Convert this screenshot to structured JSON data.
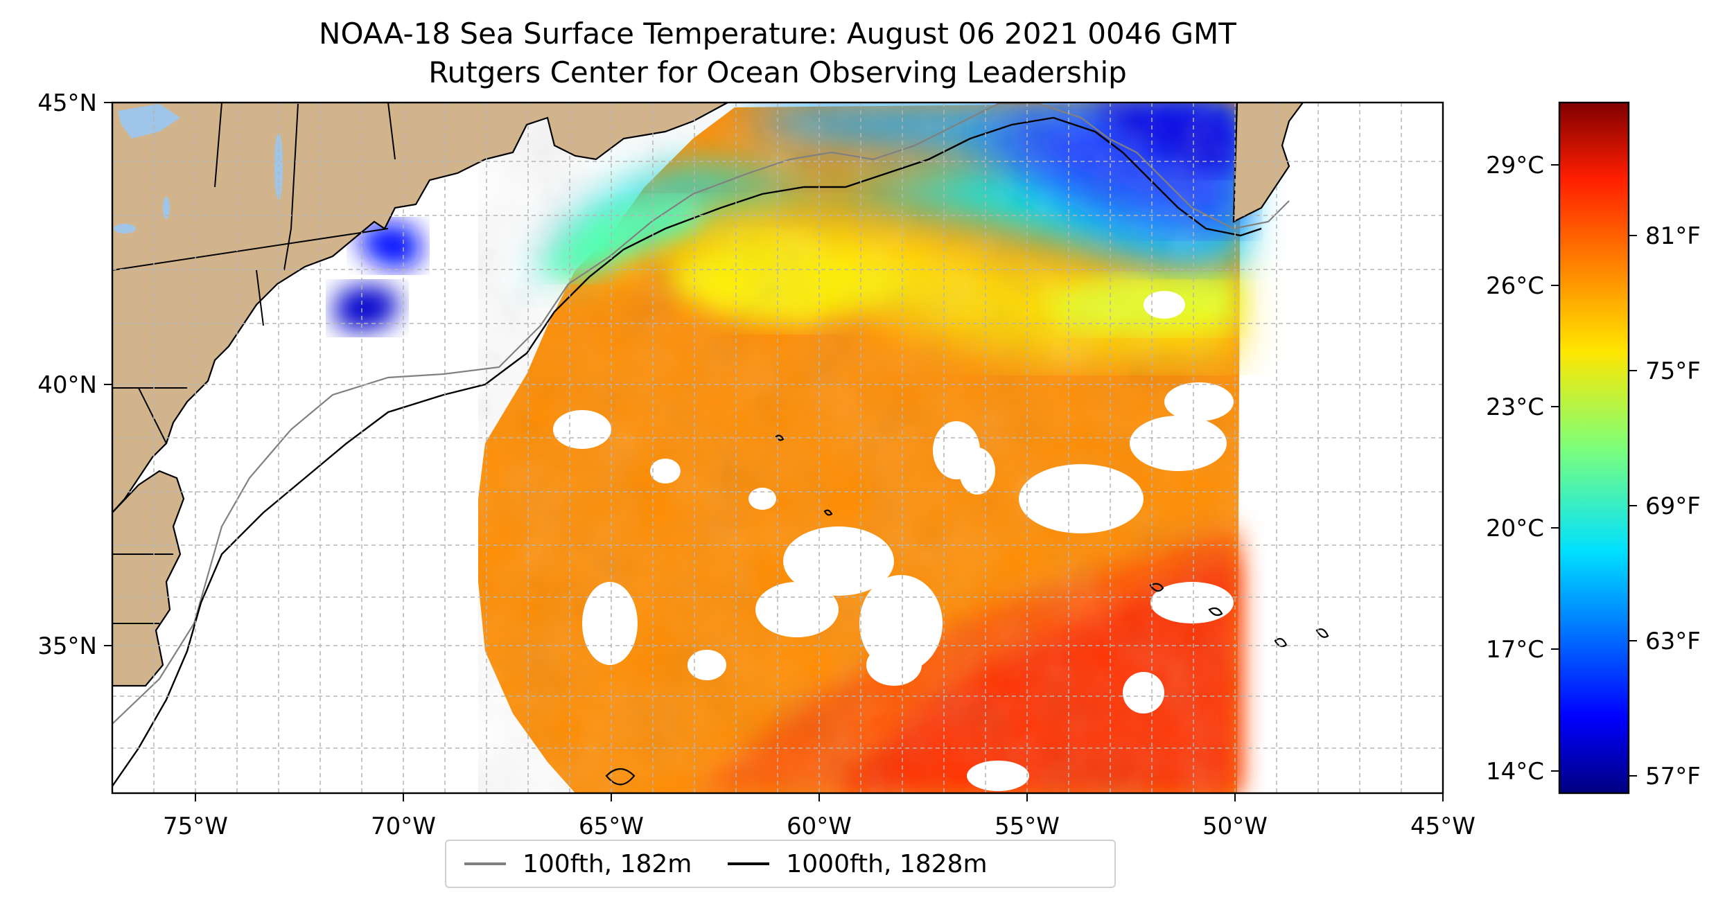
{
  "title": {
    "line1": "NOAA-18 Sea Surface Temperature: August 06 2021 0046 GMT",
    "line2": "Rutgers Center for Ocean Observing Leadership"
  },
  "map": {
    "extent": {
      "lon_min": -77,
      "lon_max": -45,
      "lat_min": 32.2,
      "lat_max": 45
    },
    "longitude_ticks": [
      {
        "value": -75,
        "label": "75°W"
      },
      {
        "value": -70,
        "label": "70°W"
      },
      {
        "value": -65,
        "label": "65°W"
      },
      {
        "value": -60,
        "label": "60°W"
      },
      {
        "value": -55,
        "label": "55°W"
      },
      {
        "value": -50,
        "label": "50°W"
      },
      {
        "value": -45,
        "label": "45°W"
      }
    ],
    "latitude_ticks": [
      {
        "value": 45,
        "label": "45°N"
      },
      {
        "value": 40,
        "label": "40°N"
      },
      {
        "value": 35,
        "label": "35°N"
      }
    ],
    "gridlines": true,
    "land_color": "#d2b48c",
    "lake_color": "#9fc5e8"
  },
  "legend": {
    "items": [
      {
        "label": "100fth, 182m",
        "color": "#808080"
      },
      {
        "label": "1000fth, 1828m",
        "color": "#000000"
      }
    ]
  },
  "colorbar": {
    "colormap": "jet",
    "celsius_ticks": [
      "29°C",
      "26°C",
      "23°C",
      "20°C",
      "17°C",
      "14°C"
    ],
    "fahrenheit_ticks": [
      "81°F",
      "75°F",
      "69°F",
      "63°F",
      "57°F"
    ]
  }
}
